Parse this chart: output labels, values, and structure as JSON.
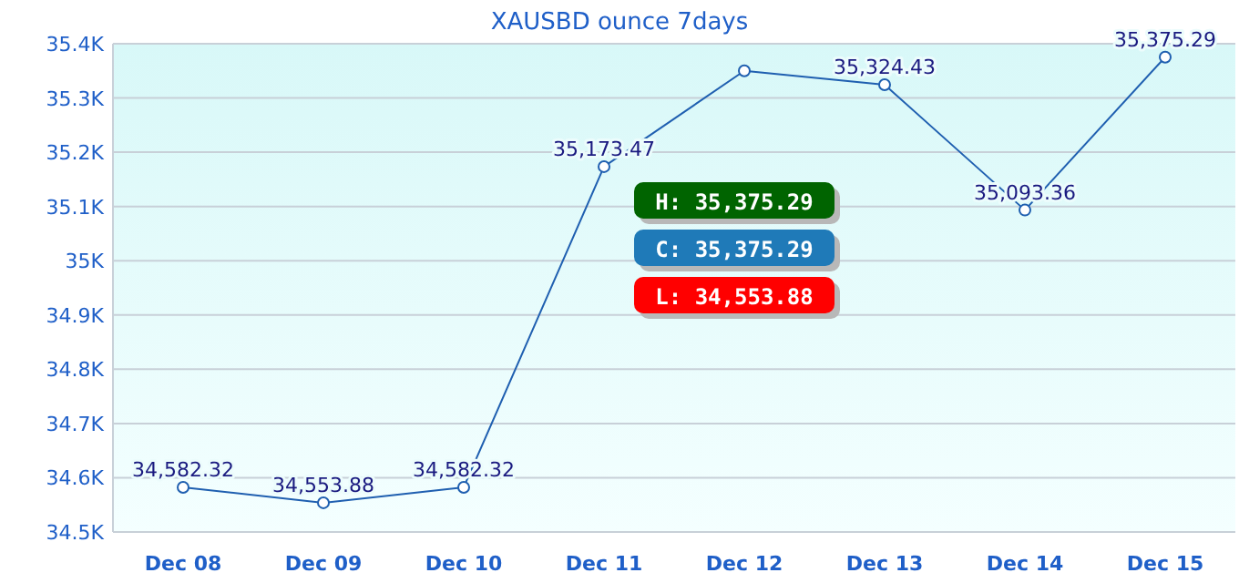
{
  "chart_data": {
    "type": "line",
    "title": "XAUSBD ounce  7days",
    "categories": [
      "Dec 08",
      "Dec 09",
      "Dec 10",
      "Dec 11",
      "Dec 12",
      "Dec 13",
      "Dec 14",
      "Dec 15"
    ],
    "series": [
      {
        "color": "#1f5fb0",
        "values": [
          34582.32,
          34553.88,
          34582.32,
          35173.47,
          35350,
          35324.43,
          35093.36,
          35375.29
        ],
        "value_labels": [
          "34,582.32",
          "34,553.88",
          "34,582.32",
          "35,173.47",
          null,
          "35,324.43",
          "35,093.36",
          "35,375.29"
        ]
      }
    ],
    "ylim": [
      34500,
      35400
    ],
    "yticks": [
      {
        "value": 34500,
        "label": "34.5K"
      },
      {
        "value": 34600,
        "label": "34.6K"
      },
      {
        "value": 34700,
        "label": "34.7K"
      },
      {
        "value": 34800,
        "label": "34.8K"
      },
      {
        "value": 34900,
        "label": "34.9K"
      },
      {
        "value": 35000,
        "label": "35K"
      },
      {
        "value": 35100,
        "label": "35.1K"
      },
      {
        "value": 35200,
        "label": "35.2K"
      },
      {
        "value": 35300,
        "label": "35.3K"
      },
      {
        "value": 35400,
        "label": "35.4K"
      }
    ],
    "grid": "y",
    "marker": "circle",
    "line_style": "solid",
    "annotations": [
      "H: 35,375.29",
      "C: 35,375.29",
      "L: 34,553.88"
    ]
  }
}
